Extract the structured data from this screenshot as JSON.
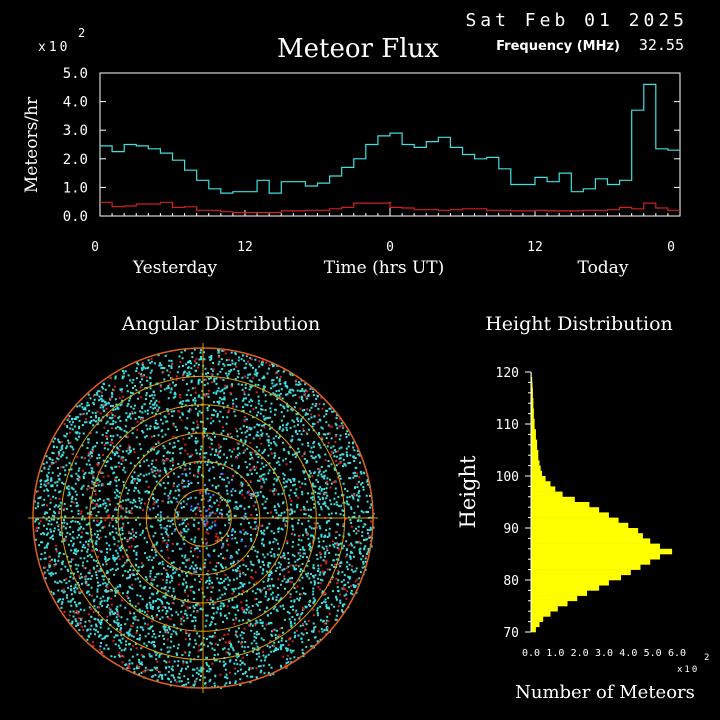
{
  "header": {
    "date": "Sat Feb 01 2025",
    "title": "Meteor Flux",
    "frequency_label": "Frequency (MHz)",
    "frequency_value": "32.55",
    "flux_multiplier": "x10",
    "flux_multiplier_exp": "2"
  },
  "colors": {
    "background": "#000000",
    "axes": "#ffffff",
    "series_total": "#40e0e0",
    "series_underdense": "#d02020",
    "angular_grid": "#e0a000",
    "angular_outer_ring": "#e06020",
    "height_bars": "#ffff00"
  },
  "chart_data": [
    {
      "type": "line",
      "name": "meteor-flux",
      "ylabel": "Meteors/hr",
      "xlabel": "Time (hrs UT)",
      "x_period_labels": [
        "Yesterday",
        "Today"
      ],
      "x_tick_labels": [
        "0",
        "12",
        "0",
        "12",
        "0"
      ],
      "y_tick_labels": [
        "0.0",
        "1.0",
        "2.0",
        "3.0",
        "4.0",
        "5.0"
      ],
      "ylim": [
        0,
        5
      ],
      "y_units": "x10^2",
      "step": true,
      "x_hours": [
        0,
        1,
        2,
        3,
        4,
        5,
        6,
        7,
        8,
        9,
        10,
        11,
        12,
        13,
        14,
        15,
        16,
        17,
        18,
        19,
        20,
        21,
        22,
        23,
        24,
        25,
        26,
        27,
        28,
        29,
        30,
        31,
        32,
        33,
        34,
        35,
        36,
        37,
        38,
        39,
        40,
        41,
        42,
        43,
        44,
        45,
        46,
        47
      ],
      "series": [
        {
          "color_key": "series_total",
          "values": [
            2.45,
            2.25,
            2.5,
            2.45,
            2.35,
            2.2,
            1.95,
            1.6,
            1.25,
            0.95,
            0.8,
            0.85,
            0.85,
            1.25,
            0.8,
            1.2,
            1.2,
            1.05,
            1.15,
            1.4,
            1.7,
            2.0,
            2.5,
            2.8,
            2.9,
            2.5,
            2.4,
            2.6,
            2.75,
            2.4,
            2.15,
            2.0,
            2.05,
            1.65,
            1.1,
            1.1,
            1.35,
            1.2,
            1.5,
            0.85,
            0.95,
            1.3,
            1.1,
            1.25,
            3.7,
            4.6,
            2.35,
            2.3
          ]
        },
        {
          "color_key": "series_underdense",
          "values": [
            0.48,
            0.33,
            0.35,
            0.42,
            0.42,
            0.48,
            0.3,
            0.32,
            0.2,
            0.2,
            0.15,
            0.12,
            0.12,
            0.12,
            0.12,
            0.18,
            0.18,
            0.2,
            0.2,
            0.25,
            0.3,
            0.45,
            0.45,
            0.45,
            0.3,
            0.28,
            0.22,
            0.22,
            0.2,
            0.22,
            0.25,
            0.25,
            0.2,
            0.2,
            0.18,
            0.18,
            0.2,
            0.18,
            0.18,
            0.18,
            0.2,
            0.2,
            0.22,
            0.3,
            0.25,
            0.45,
            0.28,
            0.2
          ]
        }
      ]
    },
    {
      "type": "scatter",
      "name": "angular-distribution",
      "title": "Angular Distribution",
      "projection": "polar",
      "rings": 6
    },
    {
      "type": "bar",
      "name": "height-distribution",
      "orientation": "horizontal",
      "title": "Height Distribution",
      "ylabel": "Height",
      "xlabel": "Number of Meteors",
      "x_units_multiplier": "x10",
      "x_units_exp": "2",
      "ylim": [
        70,
        120
      ],
      "y_tick_labels": [
        "70",
        "80",
        "90",
        "100",
        "110",
        "120"
      ],
      "x_tick_labels": [
        "0.0",
        "1.0",
        "2.0",
        "3.0",
        "4.0",
        "5.0",
        "6.0"
      ],
      "xlim": [
        0,
        6
      ],
      "heights": [
        70,
        71,
        72,
        73,
        74,
        75,
        76,
        77,
        78,
        79,
        80,
        81,
        82,
        83,
        84,
        85,
        86,
        87,
        88,
        89,
        90,
        91,
        92,
        93,
        94,
        95,
        96,
        97,
        98,
        99,
        100,
        101,
        102,
        103,
        104,
        105,
        106,
        107,
        108,
        109,
        110,
        111,
        112,
        113,
        114,
        115,
        116,
        117,
        118,
        119
      ],
      "values": [
        0.2,
        0.35,
        0.5,
        0.8,
        1.1,
        1.5,
        1.9,
        2.3,
        2.8,
        3.2,
        3.7,
        4.1,
        4.5,
        4.9,
        5.3,
        5.8,
        5.3,
        4.9,
        4.6,
        4.4,
        4.0,
        3.6,
        3.2,
        2.8,
        2.4,
        1.8,
        1.3,
        1.0,
        0.8,
        0.6,
        0.45,
        0.4,
        0.35,
        0.3,
        0.3,
        0.25,
        0.25,
        0.2,
        0.2,
        0.15,
        0.15,
        0.12,
        0.12,
        0.1,
        0.1,
        0.08,
        0.08,
        0.06,
        0.05,
        0.03
      ]
    }
  ]
}
